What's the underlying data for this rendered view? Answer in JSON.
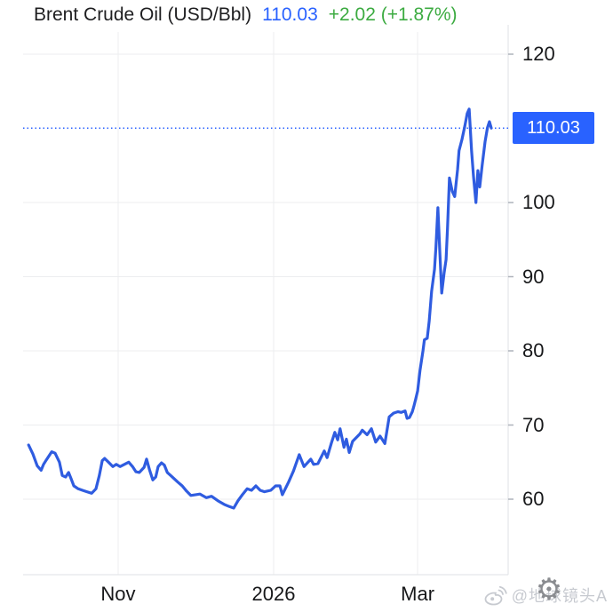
{
  "header": {
    "title": "Brent Crude Oil (USD/Bbl)",
    "price": "110.03",
    "change": "+2.02 (+1.87%)"
  },
  "colors": {
    "accent_blue": "#2962FF",
    "line_blue": "#2F5CE0",
    "up_green": "#3CAB41",
    "grid": "#ECEDEF",
    "axis_border": "#DFE1E5",
    "tick": "#AEB3BB",
    "label_text": "#17181A",
    "badge_text": "#FFFFFF"
  },
  "watermark": {
    "handle": "@地球镜头A",
    "weibo_icon": "weibo-eye",
    "gear_glyph": "⚙"
  },
  "chart_data": {
    "type": "line",
    "title": "Brent Crude Oil (USD/Bbl)",
    "last_price": 110.03,
    "last_label": "110.03",
    "change_abs": "+2.02",
    "change_pct": "+1.87%",
    "ylim": [
      49.8,
      123.4
    ],
    "y_ticks": [
      120,
      100,
      90,
      80,
      70,
      60
    ],
    "x_ticks": [
      {
        "label": "Nov",
        "t": 0.19
      },
      {
        "label": "2026",
        "t": 0.513
      },
      {
        "label": "Mar",
        "t": 0.812
      }
    ],
    "grid": true,
    "legend": false,
    "series": [
      {
        "name": "Brent Crude Oil",
        "points": [
          [
            0.004,
            67.3
          ],
          [
            0.013,
            66.1
          ],
          [
            0.022,
            64.5
          ],
          [
            0.03,
            63.9
          ],
          [
            0.035,
            64.7
          ],
          [
            0.041,
            65.3
          ],
          [
            0.052,
            66.4
          ],
          [
            0.059,
            66.2
          ],
          [
            0.068,
            65.0
          ],
          [
            0.074,
            63.2
          ],
          [
            0.081,
            63.0
          ],
          [
            0.087,
            63.6
          ],
          [
            0.092,
            62.8
          ],
          [
            0.098,
            61.8
          ],
          [
            0.107,
            61.4
          ],
          [
            0.116,
            61.2
          ],
          [
            0.125,
            61.0
          ],
          [
            0.135,
            60.8
          ],
          [
            0.144,
            61.4
          ],
          [
            0.151,
            63.2
          ],
          [
            0.157,
            65.2
          ],
          [
            0.162,
            65.5
          ],
          [
            0.17,
            65.0
          ],
          [
            0.179,
            64.4
          ],
          [
            0.186,
            64.7
          ],
          [
            0.194,
            64.4
          ],
          [
            0.203,
            64.7
          ],
          [
            0.212,
            65.0
          ],
          [
            0.22,
            64.4
          ],
          [
            0.227,
            63.7
          ],
          [
            0.234,
            63.6
          ],
          [
            0.244,
            64.3
          ],
          [
            0.249,
            65.4
          ],
          [
            0.255,
            64.0
          ],
          [
            0.262,
            62.6
          ],
          [
            0.268,
            63.0
          ],
          [
            0.273,
            64.4
          ],
          [
            0.28,
            64.9
          ],
          [
            0.286,
            64.6
          ],
          [
            0.292,
            63.6
          ],
          [
            0.299,
            63.2
          ],
          [
            0.304,
            62.9
          ],
          [
            0.314,
            62.3
          ],
          [
            0.323,
            61.8
          ],
          [
            0.332,
            61.1
          ],
          [
            0.341,
            60.5
          ],
          [
            0.36,
            60.7
          ],
          [
            0.373,
            60.2
          ],
          [
            0.384,
            60.4
          ],
          [
            0.397,
            59.8
          ],
          [
            0.41,
            59.3
          ],
          [
            0.421,
            59.0
          ],
          [
            0.43,
            58.8
          ],
          [
            0.439,
            59.8
          ],
          [
            0.448,
            60.6
          ],
          [
            0.458,
            61.4
          ],
          [
            0.467,
            61.2
          ],
          [
            0.476,
            61.8
          ],
          [
            0.485,
            61.2
          ],
          [
            0.494,
            61.0
          ],
          [
            0.507,
            61.2
          ],
          [
            0.517,
            61.8
          ],
          [
            0.526,
            61.8
          ],
          [
            0.531,
            60.6
          ],
          [
            0.544,
            62.3
          ],
          [
            0.554,
            63.8
          ],
          [
            0.566,
            66.0
          ],
          [
            0.576,
            64.4
          ],
          [
            0.59,
            65.4
          ],
          [
            0.596,
            64.7
          ],
          [
            0.605,
            64.8
          ],
          [
            0.618,
            66.5
          ],
          [
            0.624,
            65.6
          ],
          [
            0.633,
            67.6
          ],
          [
            0.64,
            69.0
          ],
          [
            0.646,
            68.0
          ],
          [
            0.651,
            69.5
          ],
          [
            0.659,
            67.0
          ],
          [
            0.664,
            68.1
          ],
          [
            0.67,
            66.3
          ],
          [
            0.677,
            67.8
          ],
          [
            0.692,
            68.8
          ],
          [
            0.697,
            69.3
          ],
          [
            0.707,
            68.7
          ],
          [
            0.716,
            69.5
          ],
          [
            0.725,
            67.7
          ],
          [
            0.734,
            68.5
          ],
          [
            0.744,
            67.5
          ],
          [
            0.753,
            71.1
          ],
          [
            0.762,
            71.6
          ],
          [
            0.771,
            71.8
          ],
          [
            0.778,
            71.7
          ],
          [
            0.786,
            71.9
          ],
          [
            0.79,
            70.9
          ],
          [
            0.795,
            71.0
          ],
          [
            0.801,
            71.8
          ],
          [
            0.804,
            72.5
          ],
          [
            0.808,
            73.5
          ],
          [
            0.812,
            74.6
          ],
          [
            0.817,
            77.4
          ],
          [
            0.823,
            80.0
          ],
          [
            0.826,
            81.5
          ],
          [
            0.832,
            81.7
          ],
          [
            0.836,
            84.0
          ],
          [
            0.841,
            88.0
          ],
          [
            0.847,
            91.0
          ],
          [
            0.85,
            94.0
          ],
          [
            0.854,
            99.3
          ],
          [
            0.858,
            93.5
          ],
          [
            0.862,
            87.8
          ],
          [
            0.867,
            90.5
          ],
          [
            0.871,
            92.3
          ],
          [
            0.874,
            96.5
          ],
          [
            0.878,
            103.3
          ],
          [
            0.884,
            101.5
          ],
          [
            0.889,
            100.8
          ],
          [
            0.895,
            104.5
          ],
          [
            0.898,
            107.0
          ],
          [
            0.904,
            108.5
          ],
          [
            0.91,
            110.3
          ],
          [
            0.915,
            112.0
          ],
          [
            0.919,
            112.6
          ],
          [
            0.924,
            107.0
          ],
          [
            0.928,
            103.5
          ],
          [
            0.933,
            100.0
          ],
          [
            0.937,
            104.3
          ],
          [
            0.941,
            102.1
          ],
          [
            0.946,
            105.0
          ],
          [
            0.952,
            108.2
          ],
          [
            0.957,
            110.1
          ],
          [
            0.961,
            110.9
          ],
          [
            0.965,
            110.03
          ]
        ]
      }
    ]
  }
}
